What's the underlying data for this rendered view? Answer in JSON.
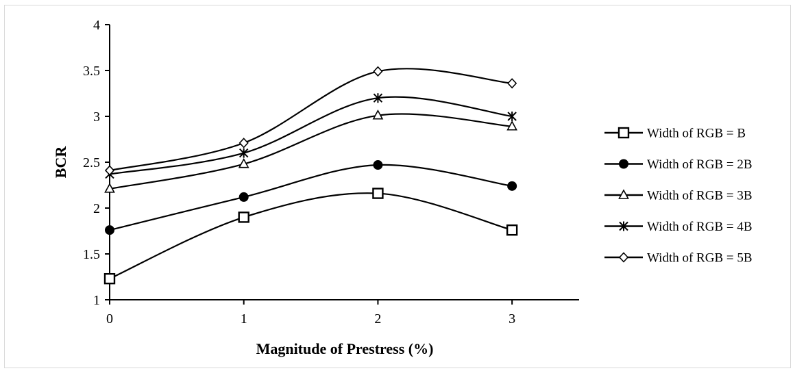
{
  "chart_data": {
    "type": "line",
    "title": "",
    "xlabel": "Magnitude of Prestress (%)",
    "ylabel": "BCR",
    "x": [
      0,
      1,
      2,
      3
    ],
    "x_ticks": [
      "0",
      "1",
      "2",
      "3"
    ],
    "xlim": [
      0,
      3.5
    ],
    "y_ticks": [
      "1",
      "1.5",
      "2",
      "2.5",
      "3",
      "3.5",
      "4"
    ],
    "ylim": [
      1,
      4
    ],
    "grid": false,
    "legend_position": "right",
    "smooth": true,
    "series": [
      {
        "name": "Width of RGB = B",
        "marker": "square-open",
        "values": [
          1.23,
          1.9,
          2.16,
          1.76
        ]
      },
      {
        "name": "Width of RGB = 2B",
        "marker": "circle-filled",
        "values": [
          1.76,
          2.12,
          2.47,
          2.24
        ]
      },
      {
        "name": "Width of RGB = 3B",
        "marker": "triangle-open",
        "values": [
          2.21,
          2.48,
          3.01,
          2.89
        ]
      },
      {
        "name": "Width of RGB = 4B",
        "marker": "asterisk",
        "values": [
          2.37,
          2.6,
          3.2,
          3.0
        ]
      },
      {
        "name": "Width of RGB = 5B",
        "marker": "diamond-open",
        "values": [
          2.41,
          2.71,
          3.49,
          3.36
        ]
      }
    ],
    "line_color": "#000000"
  }
}
